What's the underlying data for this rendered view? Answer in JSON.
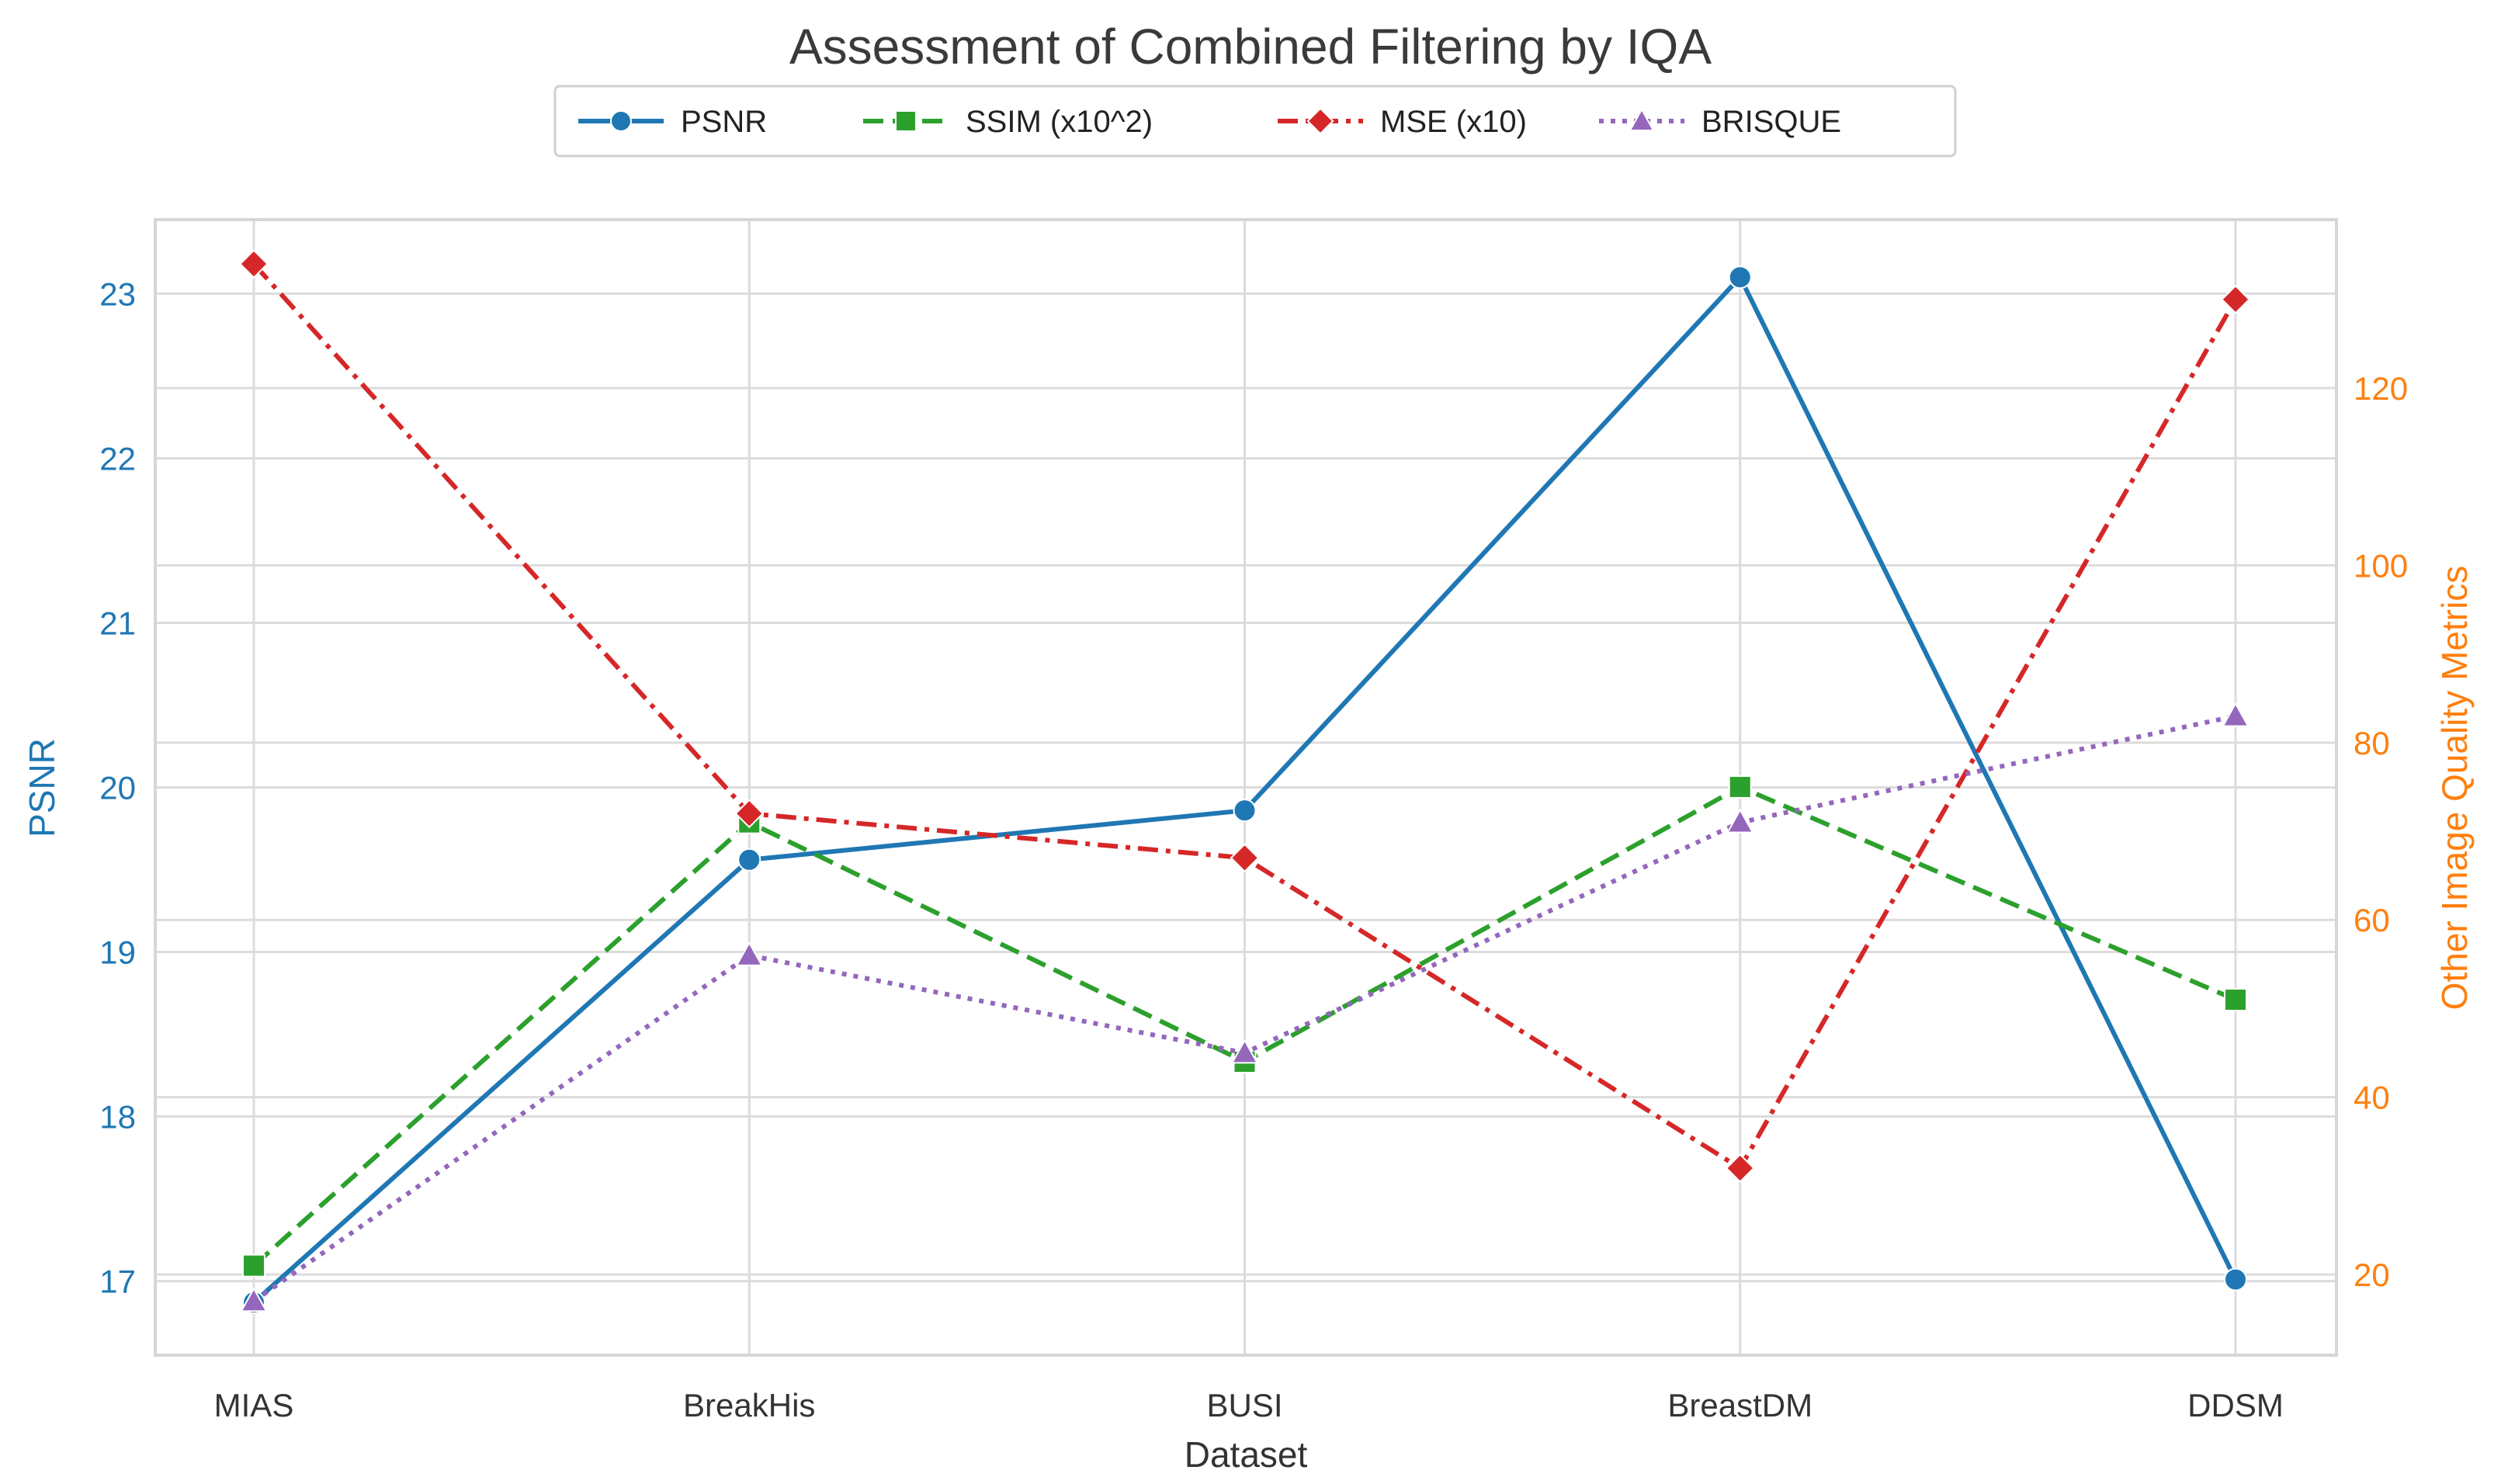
{
  "chart_data": {
    "type": "line",
    "title": "Assessment of Combined Filtering by IQA",
    "xlabel": "Dataset",
    "ylabel_left": "PSNR",
    "ylabel_right": "Other Image Quality Metrics",
    "categories": [
      "MIAS",
      "BreakHis",
      "BUSI",
      "BreastDM",
      "DDSM"
    ],
    "ylim_left": [
      16.55,
      23.45
    ],
    "ylim_right": [
      10.9,
      139
    ],
    "yticks_left": [
      17,
      18,
      19,
      20,
      21,
      22,
      23
    ],
    "yticks_right": [
      20,
      40,
      60,
      80,
      100,
      120
    ],
    "legend_position": "top-center",
    "grid": true,
    "colors": {
      "left_axis": "#1f77b4",
      "right_axis": "#ff7f0e",
      "grid": "#dcdcdc"
    },
    "series": [
      {
        "name": "PSNR",
        "axis": "left",
        "values": [
          16.87,
          19.56,
          19.86,
          23.1,
          17.01
        ],
        "color": "#1f77b4",
        "dash": "solid",
        "marker": "circle"
      },
      {
        "name": "SSIM (x10^2)",
        "axis": "right",
        "values": [
          21,
          71,
          44,
          75,
          51
        ],
        "color": "#2ca02c",
        "dash": "dashed",
        "marker": "square"
      },
      {
        "name": "MSE (x10)",
        "axis": "right",
        "values": [
          134,
          72,
          67,
          32,
          130
        ],
        "color": "#d62728",
        "dash": "dashdot",
        "marker": "diamond"
      },
      {
        "name": "BRISQUE",
        "axis": "right",
        "values": [
          17,
          56,
          45,
          71,
          83
        ],
        "color": "#9467bd",
        "dash": "dotted",
        "marker": "triangle"
      }
    ]
  }
}
